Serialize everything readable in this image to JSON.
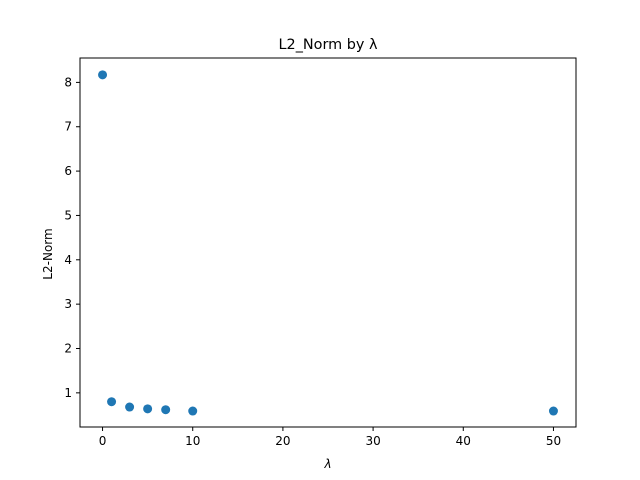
{
  "chart_data": {
    "type": "scatter",
    "title": "L2_Norm by λ",
    "xlabel": "λ",
    "ylabel": "L2-Norm",
    "xlim": [
      -2.5,
      52.5
    ],
    "ylim": [
      0.23,
      8.55
    ],
    "xticks": [
      0,
      10,
      20,
      30,
      40,
      50
    ],
    "yticks": [
      1,
      2,
      3,
      4,
      5,
      6,
      7,
      8
    ],
    "grid": false,
    "color": "#1f77b4",
    "points": [
      {
        "x": 0,
        "y": 8.17
      },
      {
        "x": 1,
        "y": 0.8
      },
      {
        "x": 3,
        "y": 0.68
      },
      {
        "x": 5,
        "y": 0.64
      },
      {
        "x": 7,
        "y": 0.62
      },
      {
        "x": 10,
        "y": 0.59
      },
      {
        "x": 50,
        "y": 0.59
      }
    ]
  }
}
